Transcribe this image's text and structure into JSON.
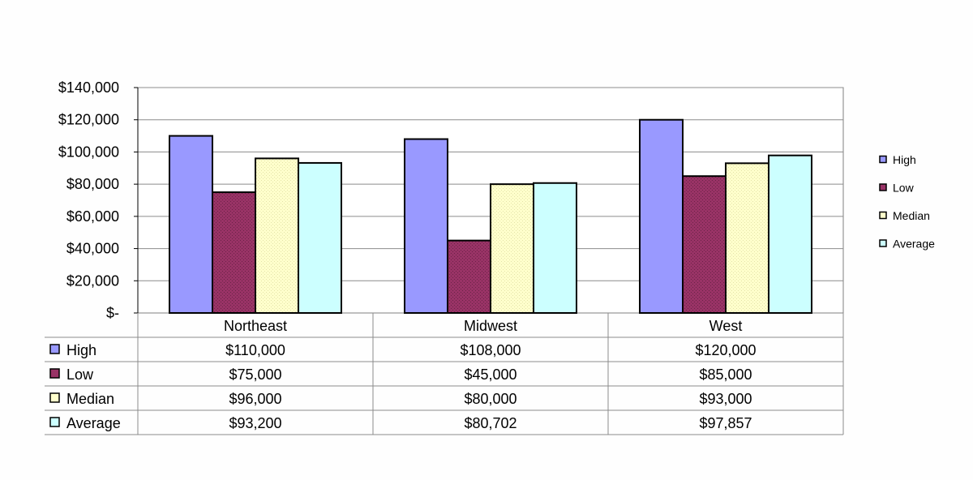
{
  "chart_data": {
    "type": "bar",
    "categories": [
      "Northeast",
      "Midwest",
      "West"
    ],
    "series": [
      {
        "name": "High",
        "values": [
          110000,
          108000,
          120000
        ],
        "color": "#9999ff",
        "labels": [
          "$110,000",
          "$108,000",
          "$120,000"
        ]
      },
      {
        "name": "Low",
        "values": [
          75000,
          45000,
          85000
        ],
        "color": "#993366",
        "labels": [
          "$75,000",
          "$45,000",
          "$85,000"
        ]
      },
      {
        "name": "Median",
        "values": [
          96000,
          80000,
          93000
        ],
        "color": "#ffffcc",
        "labels": [
          "$96,000",
          "$80,000",
          "$93,000"
        ]
      },
      {
        "name": "Average",
        "values": [
          93200,
          80702,
          97857
        ],
        "color": "#ccffff",
        "labels": [
          "$93,200",
          "$80,702",
          "$97,857"
        ]
      }
    ],
    "ylim": [
      0,
      140000
    ],
    "yticks": [
      0,
      20000,
      40000,
      60000,
      80000,
      100000,
      120000,
      140000
    ],
    "ytick_labels": [
      "$-",
      "$20,000",
      "$40,000",
      "$60,000",
      "$80,000",
      "$100,000",
      "$120,000",
      "$140,000"
    ],
    "grid": true,
    "legend": "right",
    "data_table": true,
    "title": "",
    "xlabel": "",
    "ylabel": ""
  }
}
